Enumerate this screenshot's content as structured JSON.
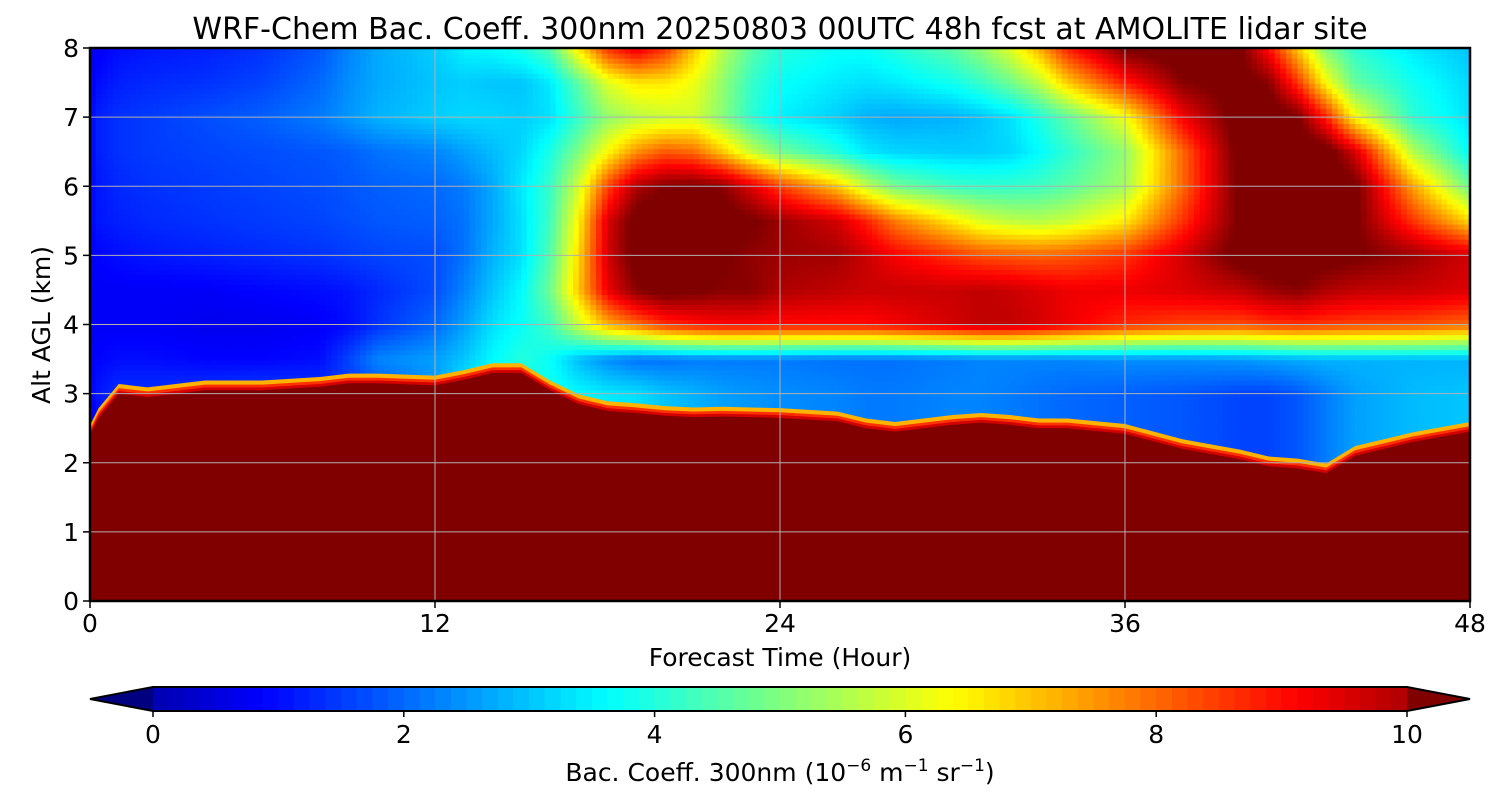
{
  "chart_data": {
    "type": "heatmap",
    "title": "WRF-Chem Bac. Coeff. 300nm  20250803 00UTC 48h fcst at AMOLITE lidar site",
    "xlabel": "Forecast Time (Hour)",
    "ylabel": "Alt AGL (km)",
    "xlim": [
      0,
      48
    ],
    "ylim": [
      0,
      8
    ],
    "xticks": [
      "0",
      "12",
      "24",
      "36",
      "48"
    ],
    "yticks": [
      "0",
      "1",
      "2",
      "3",
      "4",
      "5",
      "6",
      "7",
      "8"
    ],
    "grid": true,
    "colormap": "jet",
    "colorbar": {
      "label_main": "Bac. Coeff. 300nm  (10",
      "label_exp1": "−6",
      "label_mid": " m",
      "label_exp2": "−1",
      "label_mid2": " sr",
      "label_exp3": "−1",
      "label_end": ")",
      "range": [
        -0.5,
        10.5
      ],
      "ticks": [
        "0",
        "2",
        "4",
        "6",
        "8",
        "10"
      ],
      "extend": "both"
    },
    "x": [
      0,
      0.3,
      1,
      2,
      4,
      6,
      8,
      9,
      10,
      12,
      13,
      14,
      15,
      16,
      17,
      18,
      19,
      20,
      21,
      22,
      23,
      24,
      26,
      27,
      28,
      30,
      31,
      32,
      33,
      34,
      36,
      38,
      40,
      41,
      42,
      43,
      44,
      46,
      48
    ],
    "y": [
      0,
      0.5,
      1,
      1.5,
      2,
      2.5,
      3,
      3.5,
      4,
      4.5,
      5,
      5.5,
      6,
      6.5,
      7,
      7.5,
      8
    ],
    "surface_layer_top_km": [
      2.4,
      2.65,
      3.0,
      2.95,
      3.05,
      3.05,
      3.1,
      3.15,
      3.15,
      3.12,
      3.2,
      3.3,
      3.3,
      3.05,
      2.85,
      2.75,
      2.72,
      2.68,
      2.66,
      2.67,
      2.66,
      2.65,
      2.6,
      2.5,
      2.45,
      2.55,
      2.58,
      2.55,
      2.5,
      2.5,
      2.42,
      2.2,
      2.05,
      1.95,
      1.92,
      1.85,
      2.1,
      2.3,
      2.45
    ],
    "upper_plume_values": [
      [
        0.3,
        0.2,
        0.8,
        1.2,
        1.5,
        1.6,
        1.5,
        1.3,
        1.5,
        2.5,
        3.5,
        3.8,
        3.8,
        3.8,
        3.6,
        3.4,
        3.3,
        3.0,
        2.8,
        2.6,
        2.5,
        2.4,
        2.3,
        2.2,
        2.2,
        2.3,
        2.3,
        2.2,
        2.1,
        2.0,
        1.9,
        1.8,
        1.6,
        1.6,
        1.8,
        2.2,
        2.6,
        2.9,
        3.0
      ],
      [
        0.3,
        0.2,
        0.8,
        1.2,
        1.5,
        1.6,
        1.5,
        1.3,
        1.5,
        2.5,
        3.5,
        3.8,
        3.8,
        3.8,
        3.6,
        3.4,
        3.3,
        3.0,
        2.8,
        2.6,
        2.5,
        2.4,
        2.3,
        2.2,
        2.2,
        2.3,
        2.3,
        2.2,
        2.1,
        2.0,
        1.9,
        1.8,
        1.6,
        1.6,
        1.8,
        2.2,
        2.6,
        2.9,
        3.0
      ],
      [
        0.3,
        0.2,
        0.8,
        1.2,
        1.5,
        1.6,
        1.5,
        1.3,
        1.5,
        2.5,
        3.5,
        3.8,
        3.8,
        3.8,
        3.6,
        3.4,
        3.3,
        3.0,
        2.8,
        2.6,
        2.5,
        2.4,
        2.3,
        2.2,
        2.2,
        2.3,
        2.3,
        2.2,
        2.1,
        2.0,
        1.9,
        1.8,
        1.6,
        1.6,
        1.8,
        2.2,
        2.6,
        2.9,
        3.0
      ],
      [
        0.3,
        0.2,
        0.8,
        1.2,
        1.5,
        1.6,
        1.5,
        1.3,
        1.5,
        2.5,
        3.5,
        3.8,
        3.8,
        3.8,
        3.6,
        3.4,
        3.3,
        3.0,
        2.8,
        2.6,
        2.5,
        2.4,
        2.3,
        2.2,
        2.2,
        2.3,
        2.3,
        2.2,
        2.1,
        2.0,
        1.9,
        1.8,
        1.6,
        1.6,
        1.8,
        2.2,
        2.6,
        2.9,
        3.0
      ],
      [
        0.3,
        0.3,
        0.9,
        1.2,
        1.5,
        1.6,
        1.5,
        1.3,
        1.5,
        2.5,
        3.5,
        3.8,
        3.8,
        3.8,
        3.6,
        3.4,
        3.3,
        3.0,
        2.8,
        2.6,
        2.5,
        2.4,
        2.3,
        2.2,
        2.2,
        2.3,
        2.3,
        2.2,
        2.1,
        2.0,
        1.9,
        1.8,
        1.6,
        1.6,
        1.8,
        2.2,
        2.6,
        2.9,
        3.0
      ],
      [
        0.5,
        0.8,
        1.1,
        1.2,
        1.5,
        1.6,
        1.5,
        1.3,
        1.5,
        2.5,
        3.5,
        3.8,
        3.8,
        3.8,
        3.6,
        3.4,
        3.3,
        3.0,
        2.8,
        2.6,
        2.5,
        2.4,
        2.3,
        2.2,
        2.2,
        2.3,
        2.3,
        2.2,
        2.1,
        2.0,
        1.9,
        1.8,
        1.6,
        1.6,
        1.8,
        2.2,
        2.6,
        2.9,
        3.0
      ],
      [
        0.9,
        1.1,
        1.4,
        1.4,
        1.5,
        1.6,
        1.5,
        1.5,
        1.7,
        2.5,
        3.5,
        3.8,
        3.8,
        3.8,
        3.6,
        3.4,
        3.3,
        3.0,
        2.8,
        2.6,
        2.5,
        2.4,
        2.3,
        2.2,
        2.2,
        2.3,
        2.3,
        2.2,
        2.1,
        2.0,
        1.9,
        1.8,
        1.6,
        1.6,
        1.8,
        2.2,
        2.6,
        2.9,
        3.0
      ],
      [
        0.8,
        0.9,
        1.0,
        1.0,
        0.9,
        0.9,
        1.0,
        1.6,
        2.3,
        2.6,
        3.0,
        3.6,
        4.0,
        3.7,
        2.9,
        2.4,
        2.1,
        2.1,
        2.2,
        2.2,
        2.2,
        2.2,
        2.1,
        2.1,
        2.1,
        2.2,
        2.3,
        2.3,
        2.3,
        2.3,
        2.4,
        2.4,
        2.5,
        2.6,
        2.7,
        2.8,
        2.8,
        2.8,
        2.8
      ],
      [
        0.7,
        0.8,
        0.8,
        0.8,
        0.7,
        0.7,
        0.8,
        1.0,
        1.4,
        2.0,
        2.6,
        3.3,
        3.7,
        4.3,
        5.8,
        7.2,
        7.9,
        8.6,
        8.9,
        9.1,
        9.1,
        9.0,
        9.0,
        9.0,
        9.2,
        9.6,
        9.8,
        9.8,
        9.6,
        9.3,
        8.7,
        8.4,
        8.3,
        8.5,
        8.6,
        8.5,
        8.4,
        8.3,
        8.0
      ],
      [
        0.7,
        0.8,
        0.8,
        0.8,
        0.8,
        0.9,
        1.0,
        1.1,
        1.3,
        1.7,
        2.3,
        3.0,
        3.6,
        4.8,
        7.0,
        9.3,
        10.4,
        10.8,
        10.6,
        10.4,
        10.4,
        10.0,
        9.8,
        9.7,
        9.7,
        9.7,
        9.8,
        9.7,
        9.5,
        9.3,
        9.3,
        9.5,
        9.8,
        10.2,
        10.4,
        10.0,
        9.8,
        9.7,
        9.5
      ],
      [
        0.8,
        0.9,
        1.0,
        1.1,
        1.2,
        1.3,
        1.4,
        1.5,
        1.6,
        1.7,
        2.1,
        2.8,
        3.3,
        4.5,
        6.8,
        9.6,
        10.8,
        11.0,
        10.8,
        10.6,
        10.3,
        10.2,
        10.1,
        9.7,
        9.2,
        8.6,
        8.3,
        8.2,
        8.1,
        8.2,
        8.6,
        9.6,
        10.8,
        11.0,
        11.0,
        10.8,
        10.6,
        10.2,
        9.6
      ],
      [
        0.9,
        1.1,
        1.2,
        1.3,
        1.4,
        1.5,
        1.6,
        1.7,
        1.8,
        1.9,
        2.1,
        2.7,
        3.3,
        4.3,
        6.5,
        9.5,
        10.8,
        11.0,
        11.0,
        10.8,
        10.6,
        10.2,
        9.6,
        8.8,
        7.8,
        6.6,
        6.0,
        5.7,
        5.6,
        5.8,
        6.6,
        8.6,
        10.6,
        11.0,
        11.0,
        11.0,
        10.6,
        8.6,
        6.8
      ],
      [
        0.9,
        1.1,
        1.3,
        1.4,
        1.5,
        1.6,
        1.7,
        1.8,
        1.9,
        2.0,
        2.2,
        2.7,
        3.4,
        4.2,
        5.9,
        8.4,
        10.0,
        10.5,
        10.6,
        10.4,
        9.5,
        8.5,
        7.0,
        5.8,
        4.9,
        4.3,
        4.2,
        4.2,
        4.3,
        4.6,
        5.4,
        8.0,
        10.7,
        11.0,
        11.0,
        11.0,
        10.7,
        7.4,
        4.8
      ],
      [
        0.9,
        1.2,
        1.4,
        1.5,
        1.6,
        1.7,
        1.8,
        1.9,
        2.1,
        2.3,
        2.6,
        2.9,
        3.2,
        3.9,
        5.0,
        6.4,
        7.6,
        8.2,
        8.0,
        7.0,
        5.8,
        4.9,
        4.0,
        3.4,
        3.2,
        3.1,
        3.1,
        3.2,
        3.6,
        4.1,
        5.2,
        8.0,
        10.8,
        11.0,
        11.0,
        10.9,
        9.6,
        5.6,
        3.6
      ],
      [
        0.9,
        1.2,
        1.4,
        1.5,
        1.7,
        1.9,
        2.2,
        2.5,
        2.8,
        3.1,
        3.2,
        3.2,
        3.1,
        3.3,
        4.2,
        5.2,
        5.6,
        5.8,
        5.9,
        5.1,
        4.1,
        3.5,
        3.1,
        2.8,
        2.7,
        2.8,
        3.0,
        3.3,
        3.9,
        4.6,
        6.2,
        9.2,
        10.9,
        11.0,
        10.6,
        8.8,
        6.4,
        4.1,
        3.3
      ],
      [
        0.8,
        1.0,
        1.2,
        1.3,
        1.4,
        1.6,
        2.0,
        2.4,
        2.7,
        3.0,
        3.1,
        3.0,
        3.0,
        3.4,
        4.6,
        6.0,
        6.6,
        6.6,
        6.2,
        5.2,
        4.2,
        3.7,
        3.4,
        3.3,
        3.4,
        3.8,
        4.2,
        4.8,
        5.6,
        6.9,
        8.8,
        10.4,
        10.8,
        10.4,
        8.6,
        6.4,
        4.7,
        3.8,
        3.2
      ],
      [
        0.6,
        0.8,
        1.0,
        1.1,
        1.2,
        1.4,
        1.8,
        2.3,
        2.7,
        3.1,
        3.5,
        3.6,
        3.9,
        4.5,
        6.6,
        8.6,
        9.4,
        8.6,
        7.0,
        5.6,
        4.6,
        4.0,
        3.7,
        3.7,
        4.0,
        4.6,
        5.2,
        6.0,
        7.2,
        8.8,
        10.6,
        11.0,
        10.6,
        9.0,
        7.0,
        5.0,
        4.1,
        3.4,
        3.0
      ]
    ]
  }
}
